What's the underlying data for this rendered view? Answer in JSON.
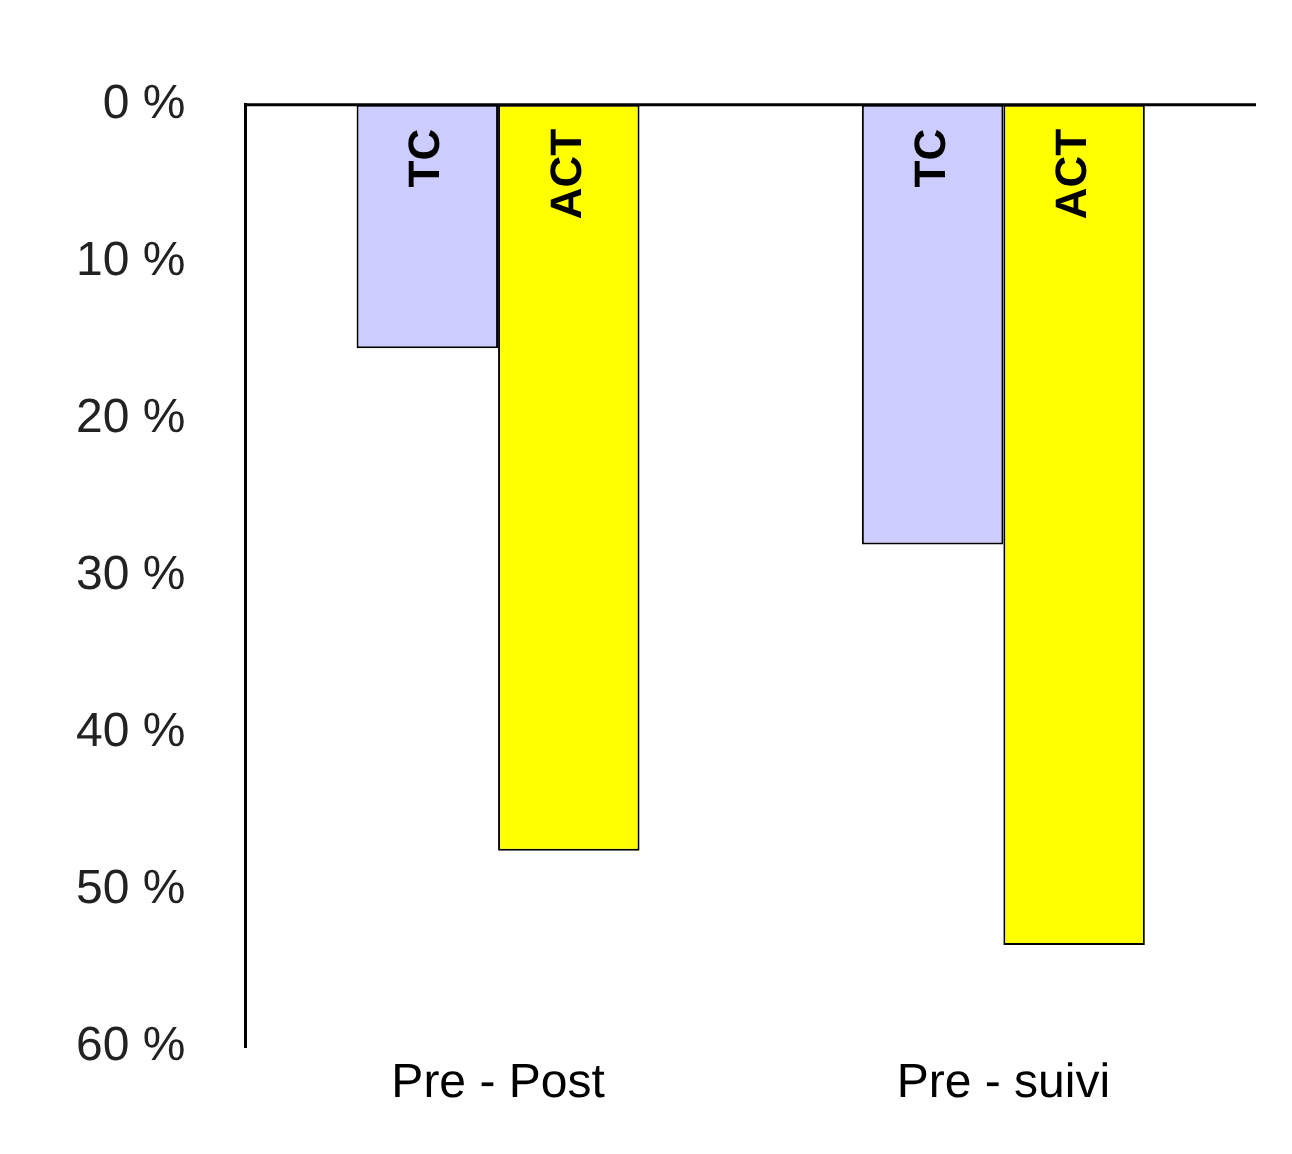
{
  "chart_data": {
    "type": "bar",
    "categories": [
      "Pre - Post",
      "Pre - suivi"
    ],
    "series": [
      {
        "name": "TC",
        "color": "#ccccff",
        "values": [
          15.5,
          28
        ]
      },
      {
        "name": "ACT",
        "color": "#ffff00",
        "values": [
          47.5,
          53.5
        ]
      }
    ],
    "ylim": [
      60,
      0
    ],
    "yticks": [
      {
        "value": 0,
        "label": "0 %"
      },
      {
        "value": 10,
        "label": "10 %"
      },
      {
        "value": 20,
        "label": "20 %"
      },
      {
        "value": 30,
        "label": "30 %"
      },
      {
        "value": 40,
        "label": "40 %"
      },
      {
        "value": 50,
        "label": "50 %"
      },
      {
        "value": 60,
        "label": "60 %"
      }
    ],
    "grid": false,
    "legend": false
  }
}
